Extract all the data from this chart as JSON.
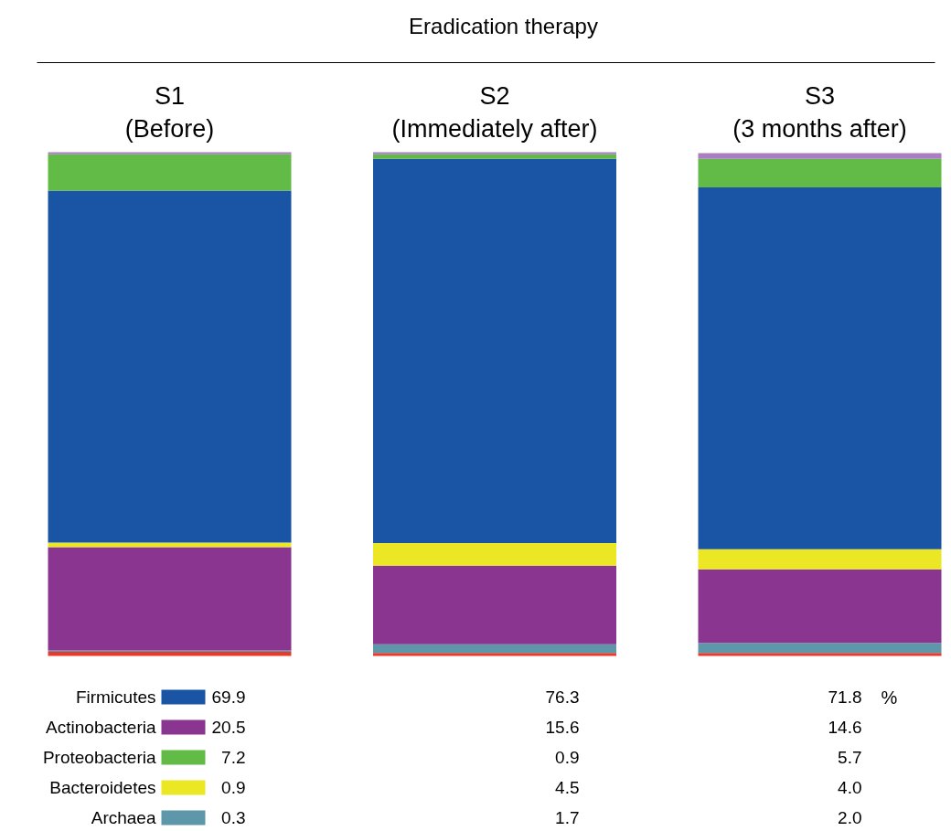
{
  "chart_data": {
    "type": "bar",
    "stacked": true,
    "title": "Eradication therapy",
    "categories": [
      "S1\n(Before)",
      "S2\n(Immediately after)",
      "S3\n(3 months after)"
    ],
    "series": [
      {
        "color": "#e8392a",
        "values": [
          0.8,
          0.6,
          0.6
        ]
      },
      {
        "name": "Archaea",
        "color": "#5f97aa",
        "values": [
          0.3,
          1.7,
          2.0
        ],
        "value_labels": [
          "0.3",
          "1.7",
          "2.0"
        ]
      },
      {
        "name": "Actinobacteria",
        "color": "#8a3590",
        "values": [
          20.5,
          15.6,
          14.6
        ],
        "value_labels": [
          "20.5",
          "15.6",
          "14.6"
        ]
      },
      {
        "name": "Bacteroidetes",
        "color": "#ebe724",
        "values": [
          0.9,
          4.5,
          4.0
        ],
        "value_labels": [
          "0.9",
          "4.5",
          "4.0"
        ]
      },
      {
        "name": "Firmicutes",
        "color": "#1a55a5",
        "values": [
          69.9,
          76.3,
          71.8
        ],
        "value_labels": [
          "69.9",
          "76.3",
          "71.8"
        ]
      },
      {
        "name": "Proteobacteria",
        "color": "#63bb47",
        "values": [
          7.2,
          0.9,
          5.7
        ],
        "value_labels": [
          "7.2",
          "0.9",
          "5.7"
        ]
      },
      {
        "color": "#a97fc0",
        "values": [
          0.4,
          0.4,
          1.1
        ]
      }
    ],
    "legend": "bottom",
    "tick_labels": false,
    "grid": false,
    "annotations": [
      "%"
    ]
  }
}
